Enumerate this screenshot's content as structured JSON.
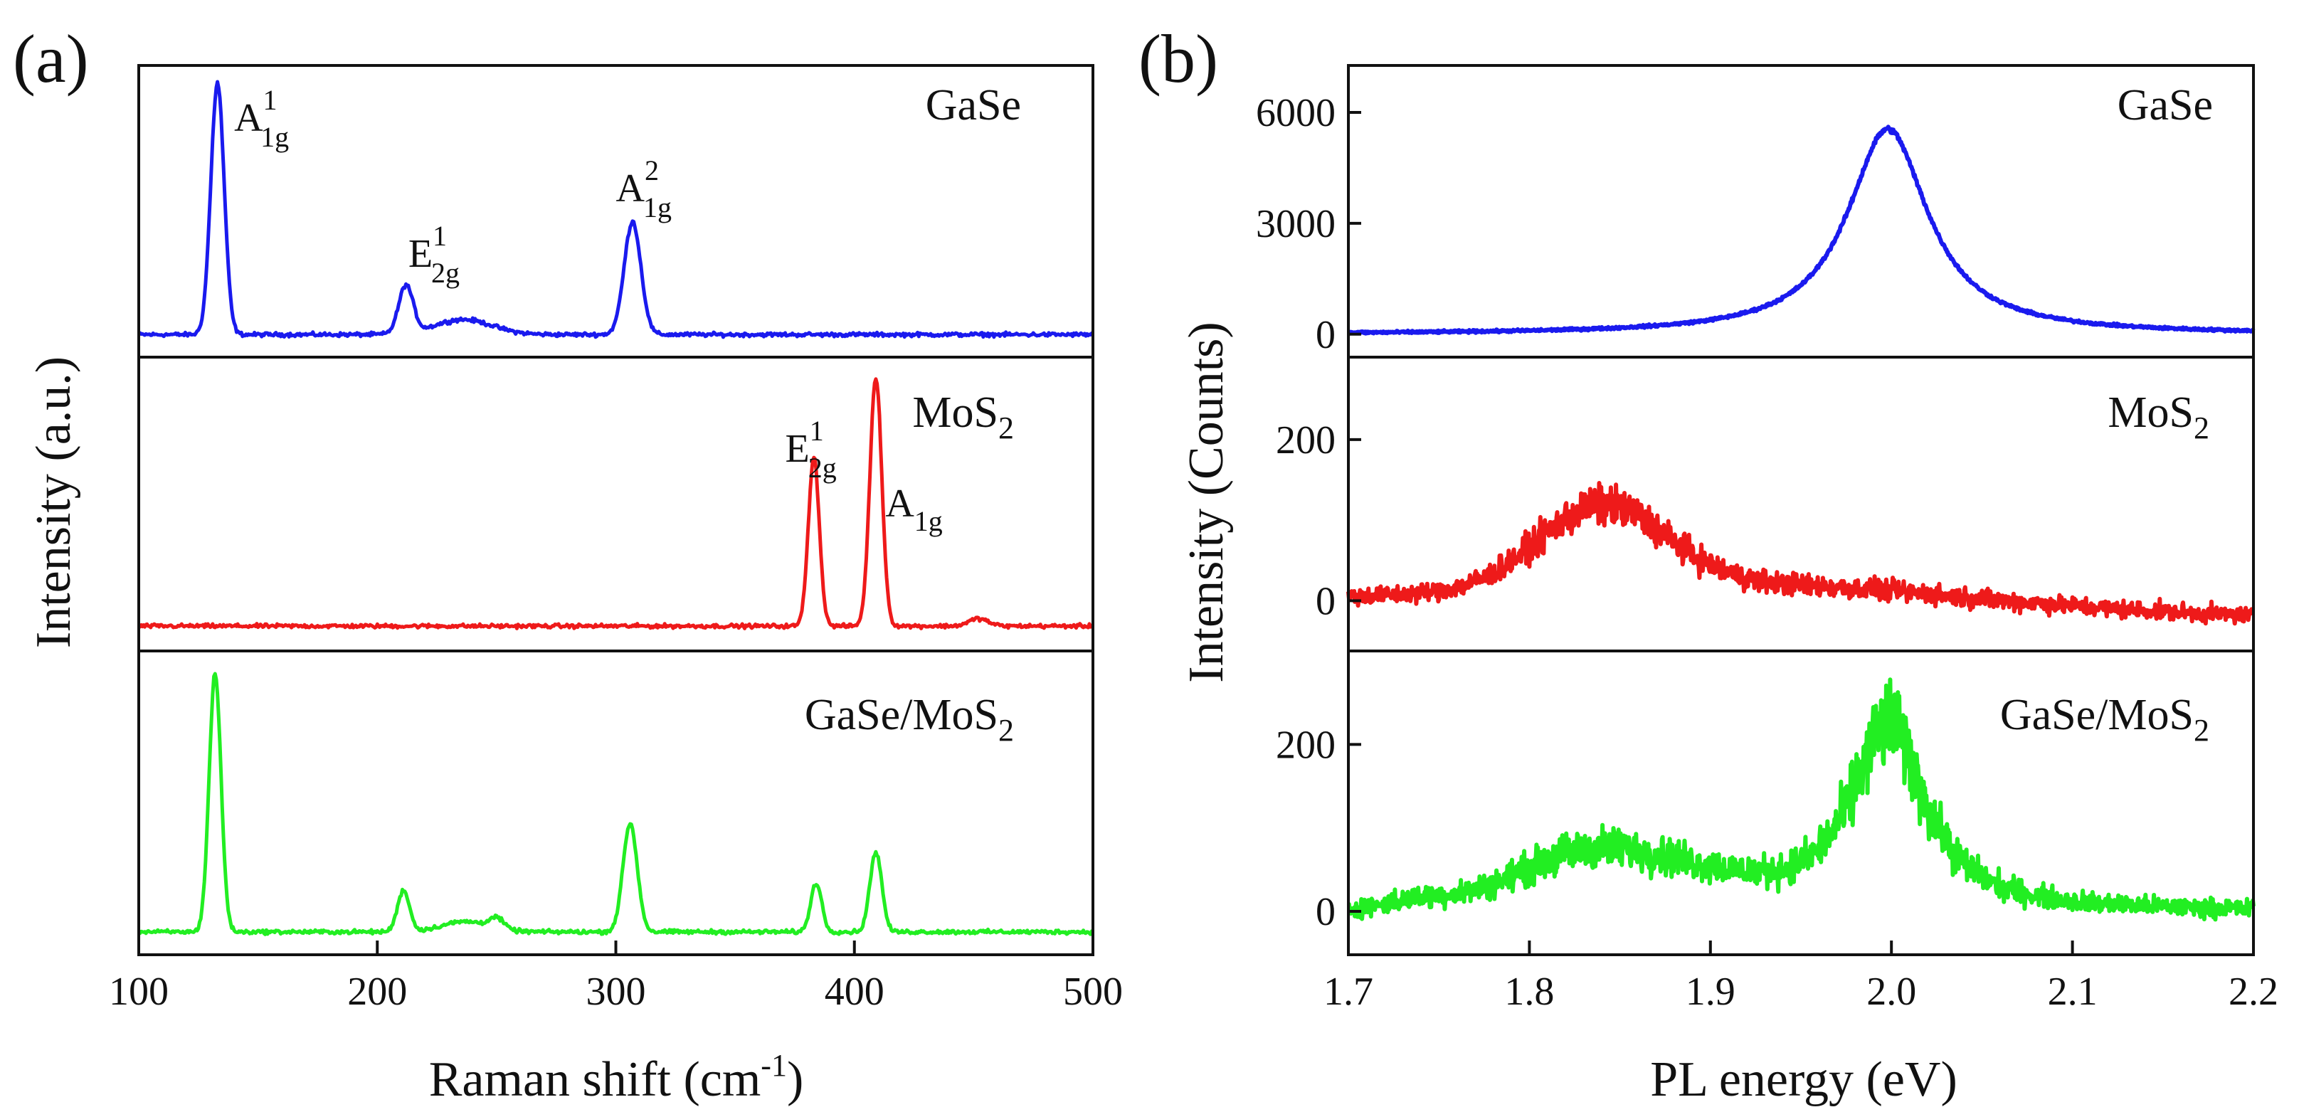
{
  "chart_data": [
    {
      "panel_label": "(a)",
      "type": "line",
      "xlabel_main": "Raman shift (cm",
      "xlabel_sup": "-1",
      "xlabel_close": ")",
      "ylabel": "Intensity (a.u.)",
      "xlim": [
        100,
        500
      ],
      "xticks": [
        "100",
        "200",
        "300",
        "400",
        "500"
      ],
      "xtick_values": [
        100,
        200,
        300,
        400,
        500
      ],
      "y_ticks_shown": false,
      "subplots": [
        {
          "title": "GaSe",
          "title_sub": "",
          "color": "#1a1aee",
          "ylim": [
            0,
            1.08
          ],
          "baseline": 0.05,
          "peaks": [
            {
              "x": 133,
              "amp": 1.0,
              "width": 2.8
            },
            {
              "x": 212,
              "amp": 0.19,
              "width": 3.0
            },
            {
              "x": 236,
              "amp": 0.06,
              "width": 12
            },
            {
              "x": 307,
              "amp": 0.45,
              "width": 3.5
            }
          ],
          "noise": 0.007,
          "annotations": [
            {
              "x": 140,
              "y": 0.86,
              "main": "A",
              "sup": "1",
              "sub": "1g"
            },
            {
              "x": 213,
              "y": 0.32,
              "main": "E",
              "sup": "1",
              "sub": "2g"
            },
            {
              "x": 300,
              "y": 0.58,
              "main": "A",
              "sup": "2",
              "sub": "1g"
            }
          ]
        },
        {
          "title": "MoS",
          "title_sub": "2",
          "color": "#ee1a1a",
          "ylim": [
            0,
            1.1
          ],
          "baseline": 0.06,
          "peaks": [
            {
              "x": 383,
              "amp": 0.68,
              "width": 2.3
            },
            {
              "x": 409,
              "amp": 1.0,
              "width": 2.5
            },
            {
              "x": 452,
              "amp": 0.03,
              "width": 4
            }
          ],
          "noise": 0.007,
          "annotations": [
            {
              "x": 371,
              "y": 0.72,
              "main": "E",
              "sup": "1",
              "sub": "2g"
            },
            {
              "x": 413,
              "y": 0.5,
              "main": "A",
              "sup": "",
              "sub": "1g"
            }
          ]
        },
        {
          "title": "GaSe/MoS",
          "title_sub": "2",
          "color": "#22ee22",
          "ylim": [
            0,
            1.1
          ],
          "baseline": 0.05,
          "peaks": [
            {
              "x": 132,
              "amp": 1.0,
              "width": 2.5
            },
            {
              "x": 211,
              "amp": 0.16,
              "width": 2.5
            },
            {
              "x": 237,
              "amp": 0.04,
              "width": 10
            },
            {
              "x": 250,
              "amp": 0.04,
              "width": 3
            },
            {
              "x": 306,
              "amp": 0.42,
              "width": 3
            },
            {
              "x": 384,
              "amp": 0.19,
              "width": 2.3
            },
            {
              "x": 409,
              "amp": 0.31,
              "width": 2.5
            }
          ],
          "noise": 0.007,
          "annotations": []
        }
      ]
    },
    {
      "panel_label": "(b)",
      "type": "line",
      "xlabel": "PL energy (eV)",
      "ylabel": "Intensity (Counts)",
      "xlim": [
        1.7,
        2.2
      ],
      "xticks": [
        "1.7",
        "1.8",
        "1.9",
        "2.0",
        "2.1",
        "2.2"
      ],
      "xtick_values": [
        1.7,
        1.8,
        1.9,
        2.0,
        2.1,
        2.2
      ],
      "subplots": [
        {
          "title": "GaSe",
          "title_sub": "",
          "color": "#1a1aee",
          "ylim": [
            -350,
            7000
          ],
          "yticks": [
            "0",
            "3000",
            "6000"
          ],
          "ytick_values": [
            0,
            3000,
            6000
          ],
          "baseline": 0,
          "peaks": [
            {
              "x": 1.998,
              "amp": 5550,
              "width": 0.027,
              "shape": "lorentz"
            }
          ],
          "noise": 30
        },
        {
          "title": "MoS",
          "title_sub": "2",
          "color": "#ee1a1a",
          "ylim": [
            -50,
            290
          ],
          "yticks": [
            "0",
            "200"
          ],
          "ytick_values": [
            0,
            200
          ],
          "baseline": 0,
          "peaks": [
            {
              "x": 1.84,
              "amp": 100,
              "width": 0.035
            },
            {
              "x": 1.92,
              "amp": 30,
              "width": 0.12
            }
          ],
          "slope": -40,
          "noise": 9
        },
        {
          "title": "GaSe/MoS",
          "title_sub": "2",
          "color": "#22ee22",
          "ylim": [
            -40,
            300
          ],
          "yticks": [
            "0",
            "200"
          ],
          "ytick_values": [
            0,
            200
          ],
          "baseline": 0,
          "peaks": [
            {
              "x": 1.83,
              "amp": 62,
              "width": 0.04
            },
            {
              "x": 1.895,
              "amp": 28,
              "width": 0.04
            },
            {
              "x": 1.998,
              "amp": 225,
              "width": 0.025,
              "shape": "lorentz"
            },
            {
              "x": 1.74,
              "amp": 10,
              "width": 0.02
            }
          ],
          "noise": 9
        }
      ]
    }
  ]
}
